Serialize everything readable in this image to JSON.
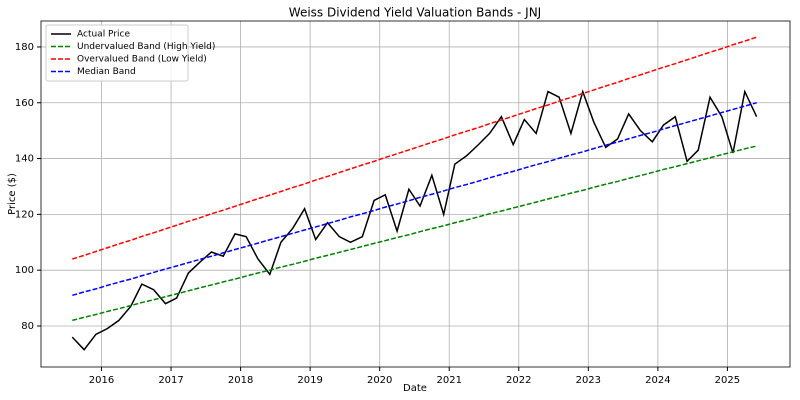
{
  "chart_data": {
    "type": "line",
    "title": "Weiss Dividend Yield Valuation Bands - JNJ",
    "xlabel": "Date",
    "ylabel": "Price ($)",
    "x": [
      2015.58,
      2015.75,
      2015.92,
      2016.08,
      2016.25,
      2016.42,
      2016.58,
      2016.75,
      2016.92,
      2017.08,
      2017.25,
      2017.42,
      2017.58,
      2017.75,
      2017.92,
      2018.08,
      2018.25,
      2018.42,
      2018.58,
      2018.75,
      2018.92,
      2019.08,
      2019.25,
      2019.42,
      2019.58,
      2019.75,
      2019.92,
      2020.08,
      2020.25,
      2020.42,
      2020.58,
      2020.75,
      2020.92,
      2021.08,
      2021.25,
      2021.42,
      2021.58,
      2021.75,
      2021.92,
      2022.08,
      2022.25,
      2022.42,
      2022.58,
      2022.75,
      2022.92,
      2023.08,
      2023.25,
      2023.42,
      2023.58,
      2023.75,
      2023.92,
      2024.08,
      2024.25,
      2024.42,
      2024.58,
      2024.75,
      2024.92,
      2025.08,
      2025.25,
      2025.42
    ],
    "series": [
      {
        "name": "Actual Price",
        "color": "#000000",
        "linestyle": "solid",
        "values": [
          76,
          71.5,
          77,
          79,
          82,
          87,
          95,
          93,
          88,
          90,
          99,
          103,
          106.5,
          105,
          113,
          112,
          104,
          98.5,
          110,
          115,
          122,
          111,
          117,
          112,
          110,
          112,
          125,
          127,
          114,
          129,
          123,
          134,
          120,
          138,
          141,
          145,
          149,
          155,
          145,
          154,
          149,
          164,
          162,
          149,
          164,
          153,
          144,
          147,
          156,
          150,
          146,
          152,
          155,
          139,
          143,
          162,
          155,
          142,
          164,
          155
        ]
      },
      {
        "name": "Undervalued Band (High Yield)",
        "color": "#008000",
        "linestyle": "dashed",
        "values": [
          82,
          83.1,
          84.1,
          85.2,
          86.2,
          87.3,
          88.4,
          89.4,
          90.5,
          91.5,
          92.6,
          93.7,
          94.7,
          95.8,
          96.8,
          97.9,
          99,
          100,
          101.1,
          102.1,
          103.2,
          104.3,
          105.3,
          106.4,
          107.4,
          108.5,
          109.6,
          110.6,
          111.7,
          112.7,
          113.8,
          114.9,
          115.9,
          117,
          118,
          119.1,
          120.2,
          121.2,
          122.3,
          123.3,
          124.4,
          125.5,
          126.5,
          127.6,
          128.6,
          129.7,
          130.8,
          131.8,
          132.9,
          133.9,
          135,
          136.1,
          137.1,
          138.2,
          139.2,
          140.3,
          141.4,
          142.4,
          143.5,
          144.5
        ]
      },
      {
        "name": "Overvalued Band (Low Yield)",
        "color": "#ff0000",
        "linestyle": "dashed",
        "values": [
          104,
          105.3,
          106.7,
          108,
          109.4,
          110.7,
          112.1,
          113.4,
          114.8,
          116.1,
          117.5,
          118.8,
          120.2,
          121.5,
          122.9,
          124.2,
          125.6,
          126.9,
          128.2,
          129.6,
          130.9,
          132.3,
          133.6,
          135,
          136.3,
          137.7,
          139,
          140.4,
          141.7,
          143.1,
          144.4,
          145.8,
          147.1,
          148.5,
          149.8,
          151.1,
          152.5,
          153.8,
          155.2,
          156.5,
          157.9,
          159.2,
          160.6,
          161.9,
          163.3,
          164.6,
          166,
          167.3,
          168.7,
          170,
          171.4,
          172.7,
          174,
          175.4,
          176.7,
          178.1,
          179.4,
          180.8,
          182.1,
          183.5
        ]
      },
      {
        "name": "Median Band",
        "color": "#0000ff",
        "linestyle": "dashed",
        "values": [
          91,
          92.2,
          93.3,
          94.5,
          95.7,
          96.8,
          98,
          99.2,
          100.4,
          101.5,
          102.7,
          103.9,
          105,
          106.2,
          107.4,
          108.5,
          109.7,
          110.9,
          112,
          113.2,
          114.4,
          115.5,
          116.7,
          117.9,
          119.1,
          120.2,
          121.4,
          122.6,
          123.7,
          124.9,
          126.1,
          127.2,
          128.4,
          129.6,
          130.7,
          131.9,
          133.1,
          134.3,
          135.4,
          136.6,
          137.8,
          138.9,
          140.1,
          141.3,
          142.4,
          143.6,
          144.8,
          145.9,
          147.1,
          148.3,
          149.4,
          150.6,
          151.8,
          153,
          154.1,
          155.3,
          156.5,
          157.6,
          158.8,
          160
        ]
      }
    ],
    "xlim": [
      2015.13,
      2025.9
    ],
    "xticks": [
      2016,
      2017,
      2018,
      2019,
      2020,
      2021,
      2022,
      2023,
      2024,
      2025
    ],
    "ylim": [
      65.3,
      189.3
    ],
    "yticks": [
      80,
      100,
      120,
      140,
      160,
      180
    ],
    "grid": true,
    "legend": "upper left"
  }
}
